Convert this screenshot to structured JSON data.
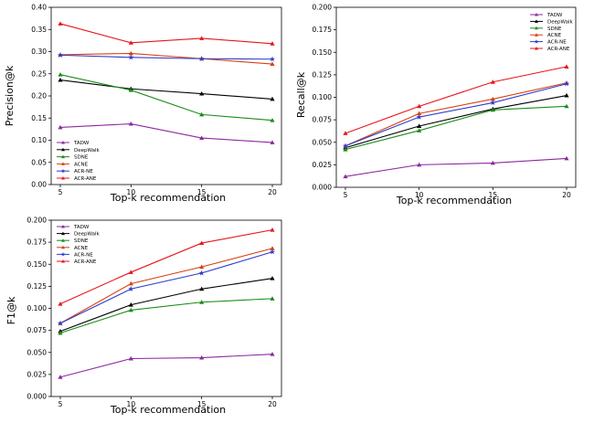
{
  "colors": {
    "TADW": "#8b2a9e",
    "DeepWalk": "#000000",
    "SDNE": "#1a8c1a",
    "ACNE": "#d6420f",
    "ACR-NE": "#2f3ccc",
    "ACR-ANE": "#e8151a"
  },
  "chart_data": [
    {
      "type": "line",
      "xlabel": "Top-k recommendation",
      "ylabel": "Precision@k",
      "x": [
        5,
        10,
        15,
        20
      ],
      "ylim": [
        0.0,
        0.4
      ],
      "yticks": [
        "0.00",
        "0.05",
        "0.10",
        "0.15",
        "0.20",
        "0.25",
        "0.30",
        "0.35",
        "0.40"
      ],
      "legend_position": "lower-left",
      "series": [
        {
          "name": "TADW",
          "values": [
            0.129,
            0.137,
            0.105,
            0.095
          ]
        },
        {
          "name": "DeepWalk",
          "values": [
            0.236,
            0.216,
            0.205,
            0.193
          ]
        },
        {
          "name": "SDNE",
          "values": [
            0.248,
            0.213,
            0.158,
            0.145
          ]
        },
        {
          "name": "ACNE",
          "values": [
            0.293,
            0.296,
            0.284,
            0.272
          ]
        },
        {
          "name": "ACR-NE",
          "values": [
            0.292,
            0.287,
            0.284,
            0.283
          ]
        },
        {
          "name": "ACR-ANE",
          "values": [
            0.363,
            0.32,
            0.33,
            0.318
          ]
        }
      ]
    },
    {
      "type": "line",
      "xlabel": "Top-k recommendation",
      "ylabel": "Recall@k",
      "x": [
        5,
        10,
        15,
        20
      ],
      "ylim": [
        0.0,
        0.2
      ],
      "yticks": [
        "0.000",
        "0.025",
        "0.050",
        "0.075",
        "0.100",
        "0.125",
        "0.150",
        "0.175",
        "0.200"
      ],
      "legend_position": "top-right",
      "series": [
        {
          "name": "TADW",
          "values": [
            0.012,
            0.025,
            0.027,
            0.032
          ]
        },
        {
          "name": "DeepWalk",
          "values": [
            0.044,
            0.068,
            0.087,
            0.102
          ]
        },
        {
          "name": "SDNE",
          "values": [
            0.042,
            0.063,
            0.086,
            0.09
          ]
        },
        {
          "name": "ACNE",
          "values": [
            0.046,
            0.082,
            0.098,
            0.116
          ]
        },
        {
          "name": "ACR-NE",
          "values": [
            0.046,
            0.078,
            0.094,
            0.115
          ]
        },
        {
          "name": "ACR-ANE",
          "values": [
            0.06,
            0.09,
            0.117,
            0.134
          ]
        }
      ]
    },
    {
      "type": "line",
      "xlabel": "Top-k recommendation",
      "ylabel": "F1@k",
      "x": [
        5,
        10,
        15,
        20
      ],
      "ylim": [
        0.0,
        0.2
      ],
      "yticks": [
        "0.000",
        "0.025",
        "0.050",
        "0.075",
        "0.100",
        "0.125",
        "0.150",
        "0.175",
        "0.200"
      ],
      "legend_position": "top-left",
      "series": [
        {
          "name": "TADW",
          "values": [
            0.022,
            0.043,
            0.044,
            0.048
          ]
        },
        {
          "name": "DeepWalk",
          "values": [
            0.074,
            0.104,
            0.122,
            0.134
          ]
        },
        {
          "name": "SDNE",
          "values": [
            0.072,
            0.098,
            0.107,
            0.111
          ]
        },
        {
          "name": "ACNE",
          "values": [
            0.083,
            0.128,
            0.147,
            0.168
          ]
        },
        {
          "name": "ACR-NE",
          "values": [
            0.083,
            0.122,
            0.14,
            0.164
          ]
        },
        {
          "name": "ACR-ANE",
          "values": [
            0.105,
            0.141,
            0.174,
            0.189
          ]
        }
      ]
    }
  ]
}
